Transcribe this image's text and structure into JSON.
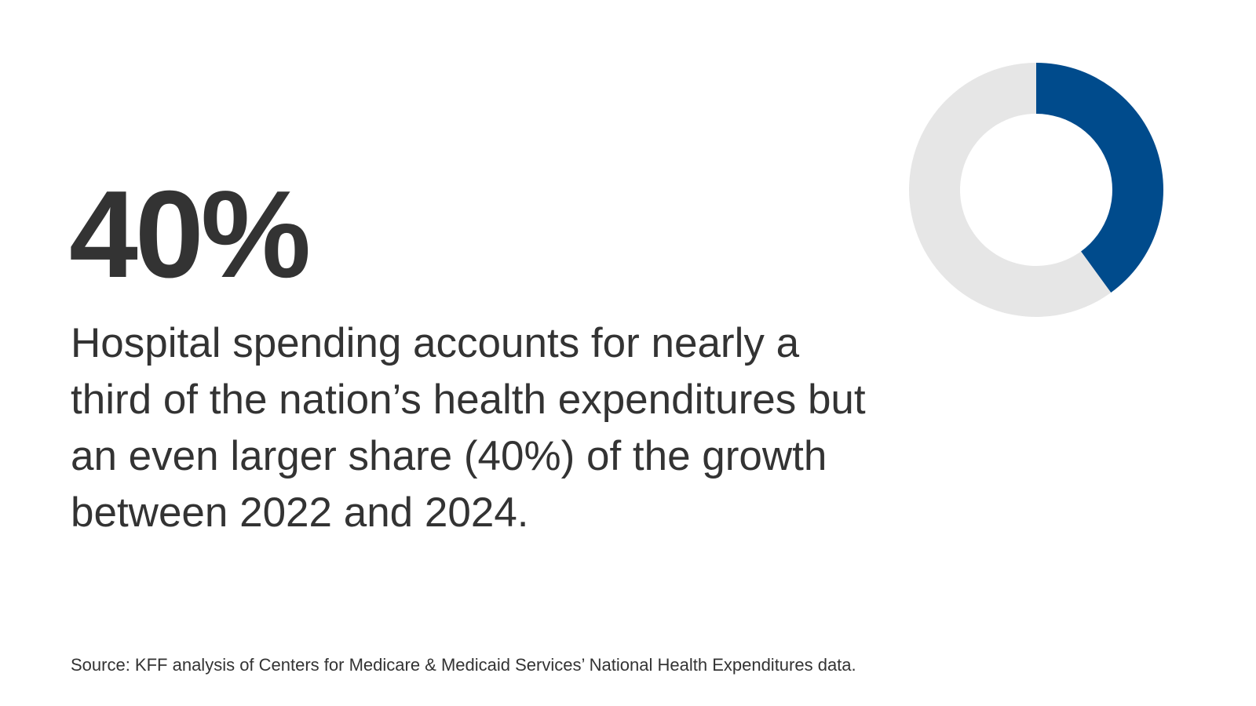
{
  "headline": {
    "stat": "40%",
    "description": "Hospital spending accounts for nearly a third of the nation’s health expenditures but an even larger share (40%) of the growth between 2022 and 2024."
  },
  "source": "Source: KFF analysis of Centers for Medicare & Medicaid Services’ National Health Expenditures data.",
  "chart_data": {
    "type": "pie",
    "variant": "donut",
    "title": "",
    "values": [
      40,
      60
    ],
    "colors": [
      "#004b8c",
      "#e6e6e6"
    ],
    "start_angle": "top",
    "direction": "clockwise",
    "legend": "none"
  }
}
